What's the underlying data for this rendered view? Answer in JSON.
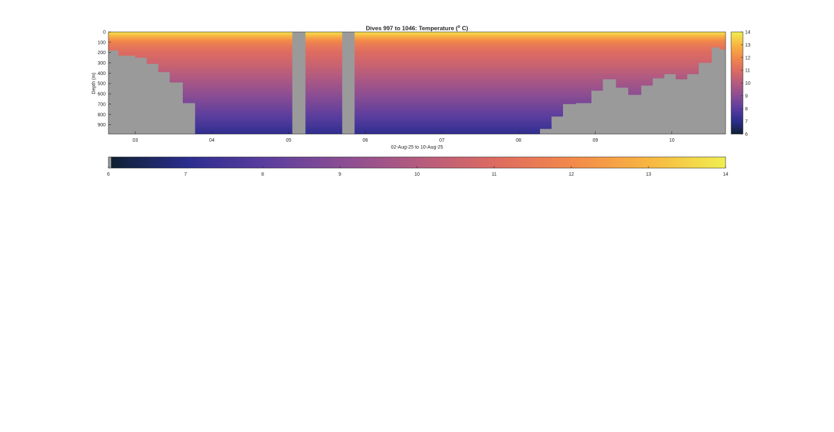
{
  "chart_data": {
    "type": "heatmap",
    "title": "Dives 997 to 1046: Temperature (",
    "title_superscript": "o",
    "title_suffix": " C)",
    "xlabel": "02-Aug-25 to 10-Aug-25",
    "ylabel": "Depth (m)",
    "x_unit": "day of Aug-25",
    "x_range": [
      2.65,
      10.7
    ],
    "x_tick_values": [
      3,
      4,
      5,
      6,
      7,
      8,
      9,
      10
    ],
    "x_tick_labels": [
      "03",
      "04",
      "05",
      "06",
      "07",
      "08",
      "09",
      "10"
    ],
    "y_range": [
      0,
      990
    ],
    "y_reversed": true,
    "y_tick_values": [
      0,
      100,
      200,
      300,
      400,
      500,
      600,
      700,
      800,
      900
    ],
    "y_tick_labels": [
      "0",
      "100",
      "200",
      "300",
      "400",
      "500",
      "600",
      "700",
      "800",
      "900"
    ],
    "colorbar_right": {
      "range": [
        6,
        14
      ],
      "tick_values": [
        6,
        7,
        8,
        9,
        10,
        11,
        12,
        13,
        14
      ],
      "tick_labels": [
        "6",
        "7",
        "8",
        "9",
        "10",
        "11",
        "12",
        "13",
        "14"
      ]
    },
    "colorbar_bottom": {
      "range": [
        6,
        14
      ],
      "tick_values": [
        6,
        7,
        8,
        9,
        10,
        11,
        12,
        13,
        14
      ],
      "tick_labels": [
        "6",
        "7",
        "8",
        "9",
        "10",
        "11",
        "12",
        "13",
        "14"
      ]
    },
    "colormap": [
      "#0f2133",
      "#2b2d8e",
      "#5a3d9e",
      "#8a4d93",
      "#b45b7f",
      "#dd6b61",
      "#f3894a",
      "#f8b641",
      "#f0ee50"
    ],
    "nodata_color": "#9a9a9a",
    "profile_depths_m": [
      0,
      15,
      30,
      50,
      75,
      100,
      150,
      200,
      300,
      400,
      500,
      600,
      700,
      800,
      900,
      950,
      990
    ],
    "profile_temperature_C": [
      13.7,
      13.5,
      13.2,
      12.7,
      12.2,
      11.8,
      11.3,
      11.0,
      10.6,
      10.1,
      9.6,
      9.1,
      8.6,
      8.1,
      7.6,
      7.3,
      7.1
    ],
    "bottom_depth_steps": {
      "day": [
        2.65,
        2.78,
        3.0,
        3.15,
        3.3,
        3.45,
        3.62,
        3.78,
        5.05,
        5.22,
        5.7,
        5.86,
        8.28,
        8.43,
        8.58,
        8.75,
        8.95,
        9.1,
        9.27,
        9.43,
        9.6,
        9.75,
        9.9,
        10.05,
        10.2,
        10.35,
        10.52,
        10.62,
        10.7
      ],
      "depth_m": [
        180,
        230,
        250,
        310,
        390,
        490,
        690,
        990,
        0,
        990,
        0,
        990,
        940,
        820,
        700,
        690,
        570,
        460,
        540,
        610,
        520,
        450,
        410,
        460,
        410,
        300,
        150,
        170,
        170
      ]
    },
    "data_gaps_day": [
      [
        5.05,
        5.22
      ],
      [
        5.7,
        5.86
      ]
    ]
  }
}
